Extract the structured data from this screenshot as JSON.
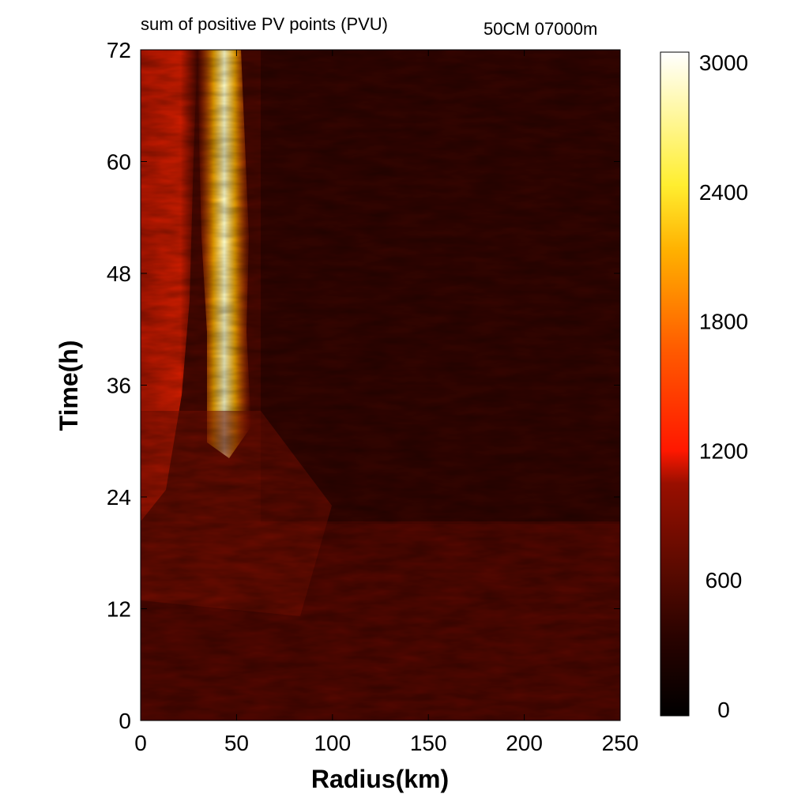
{
  "chart_data": {
    "type": "heatmap",
    "title": "sum of positive PV points (PVU)",
    "subtitle": "50CM 07000m",
    "xlabel": "Radius(km)",
    "ylabel": "Time(h)",
    "xlim": [
      0,
      250
    ],
    "ylim": [
      0,
      72
    ],
    "x_ticks": [
      "0",
      "50",
      "100",
      "150",
      "200",
      "250"
    ],
    "y_ticks": [
      "0",
      "12",
      "24",
      "36",
      "48",
      "60",
      "72"
    ],
    "colorbar": {
      "min": 0,
      "max": 3000,
      "ticks": [
        "0",
        "600",
        "1200",
        "1800",
        "2400",
        "3000"
      ],
      "colormap": "hot",
      "colors": [
        "#000000",
        "#5a0a00",
        "#b21800",
        "#ff2a00",
        "#ff8a00",
        "#ffe21a",
        "#ffffff"
      ]
    },
    "features": [
      {
        "description_radius_km": [
          35,
          50
        ],
        "time_h": [
          36,
          72
        ],
        "value_approx": 3000
      },
      {
        "description_radius_km": [
          0,
          30
        ],
        "time_h": [
          36,
          72
        ],
        "value_approx": 1200
      },
      {
        "description_radius_km": [
          60,
          250
        ],
        "time_h": [
          0,
          72
        ],
        "value_approx": 300
      }
    ]
  }
}
